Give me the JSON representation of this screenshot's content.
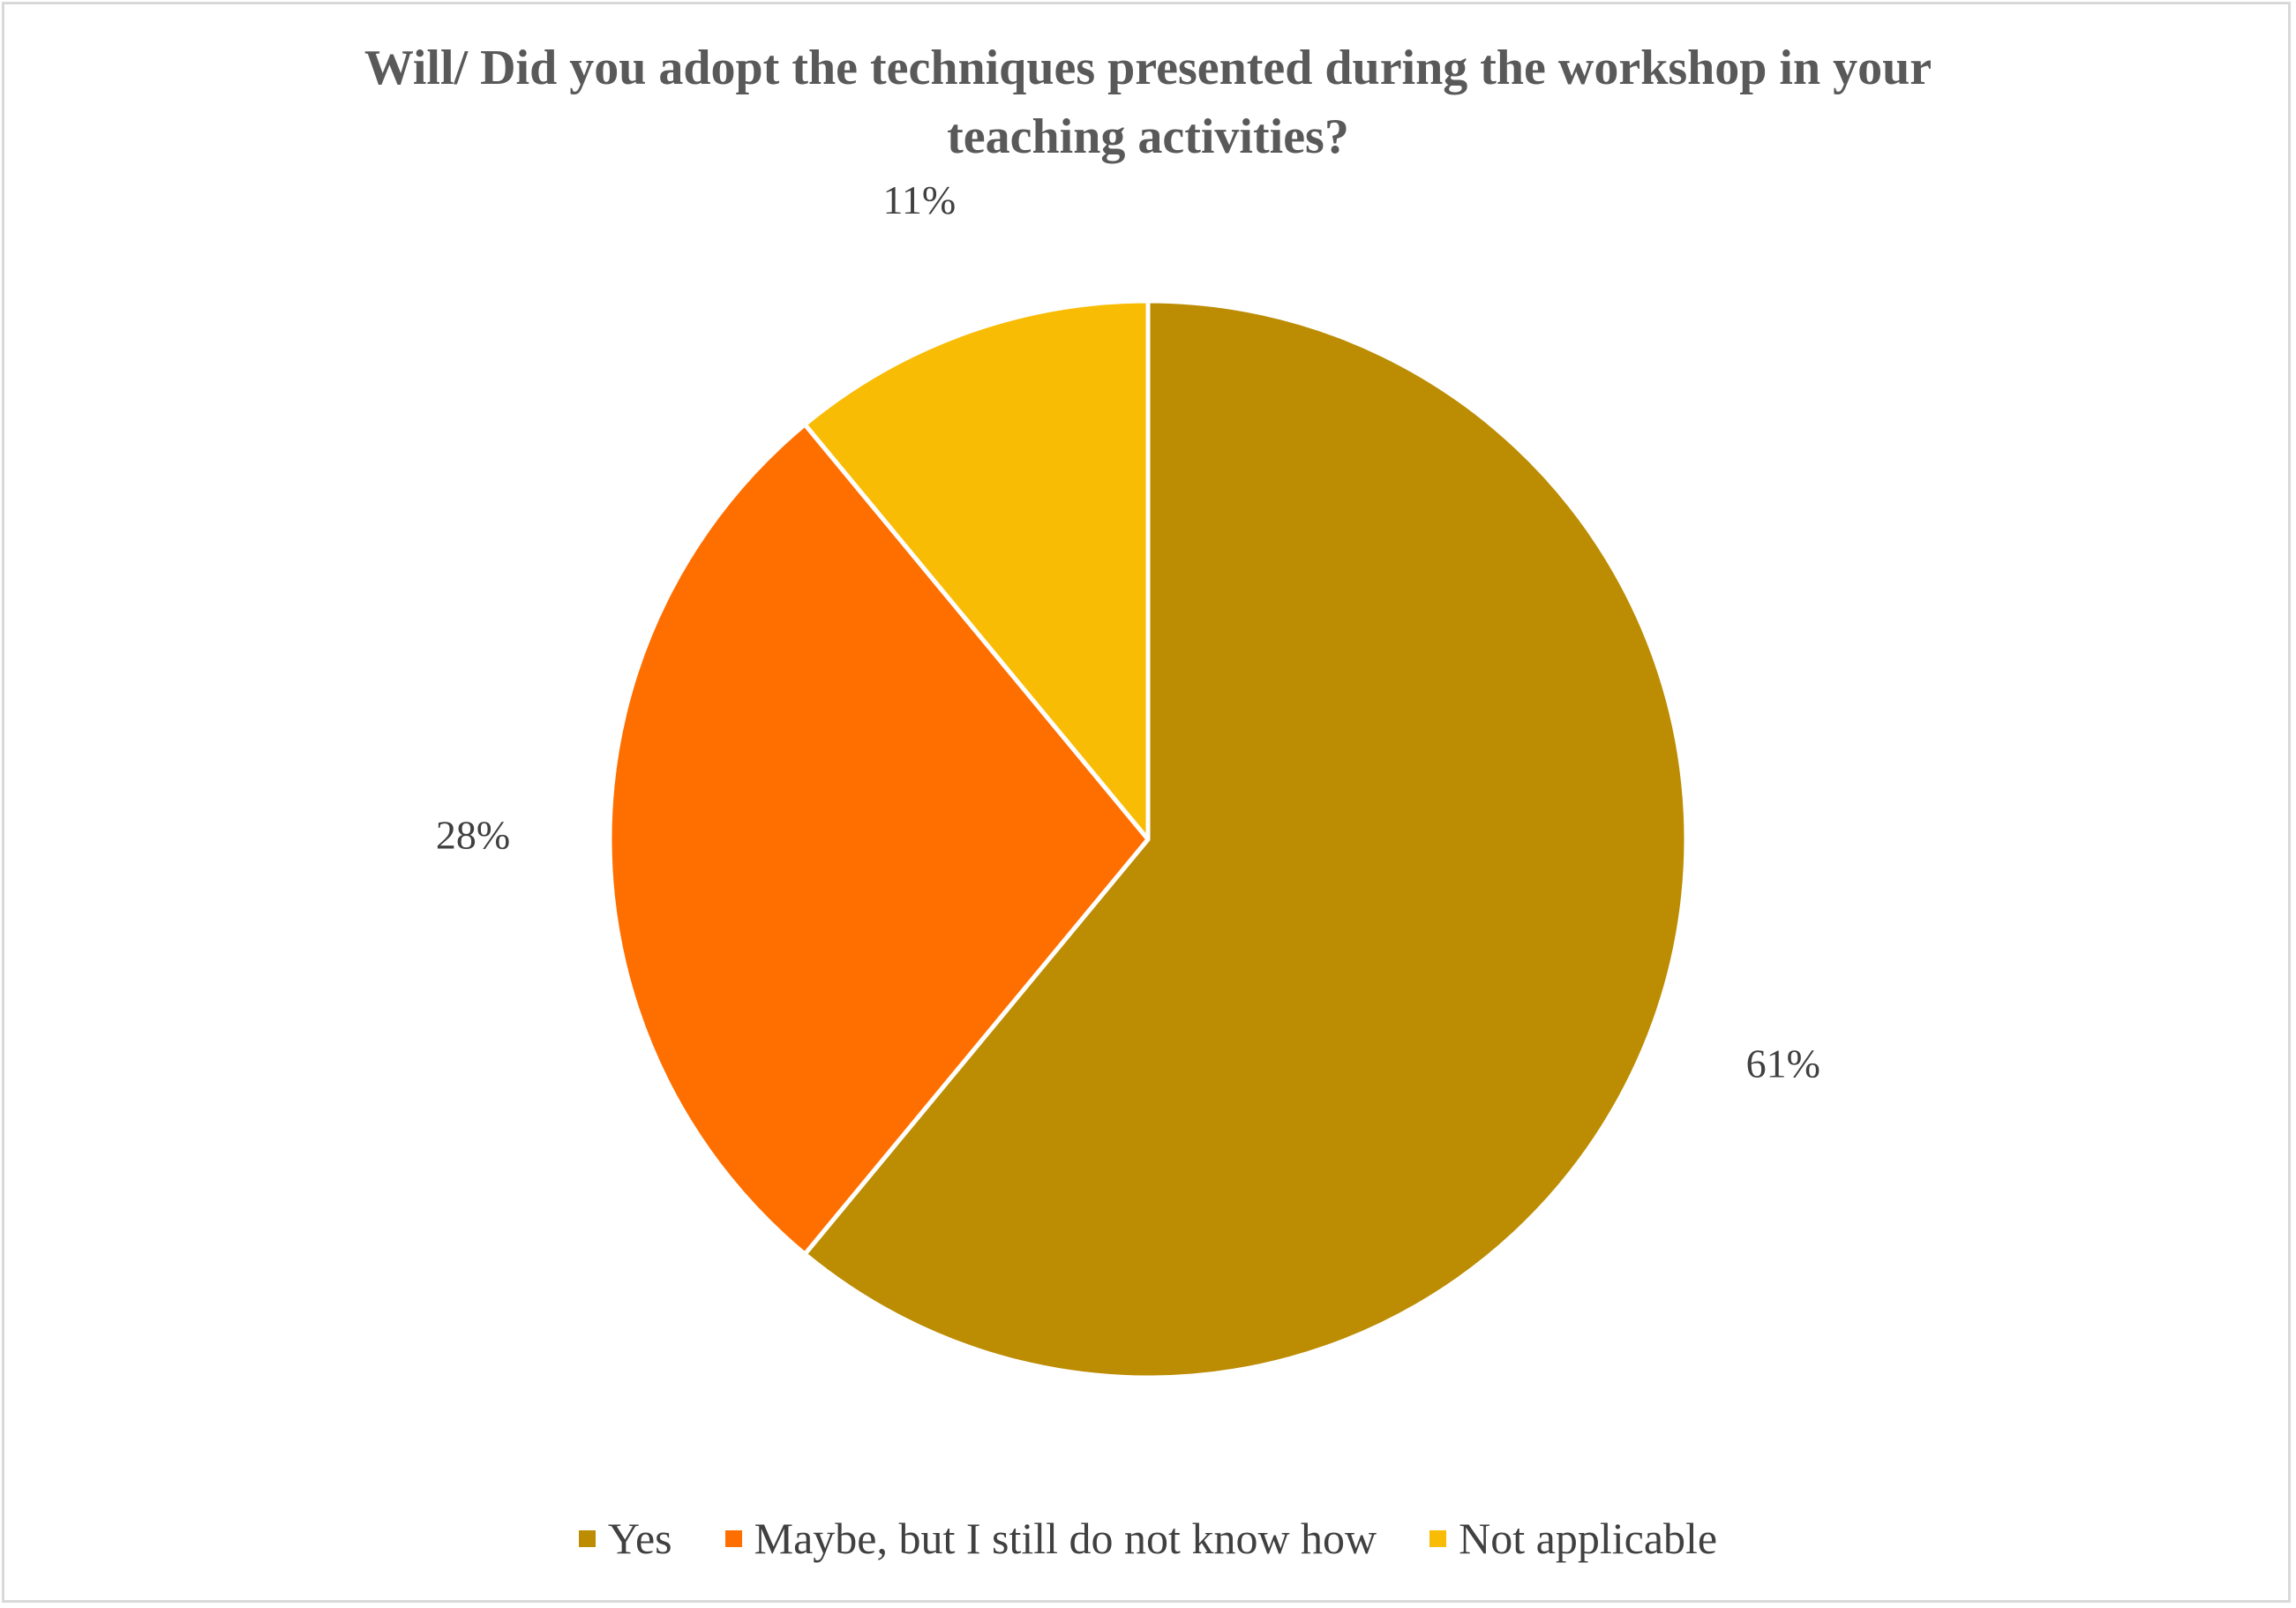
{
  "chart_data": {
    "type": "pie",
    "title": "Will/ Did you adopt the techniques presented during the workshop in your teaching activities?",
    "title_lines": [
      "Will/ Did you adopt the techniques presented during the workshop in your",
      "teaching activities?"
    ],
    "categories": [
      "Yes",
      "Maybe, but I still do not know how",
      "Not applicable"
    ],
    "values": [
      61,
      28,
      11
    ],
    "data_labels": [
      "61%",
      "28%",
      "11%"
    ],
    "colors": [
      "#BC8C03",
      "#FF6F00",
      "#F9BC05"
    ],
    "legend_position": "bottom",
    "start_angle": "12 o'clock, clockwise"
  },
  "colors": {
    "title_text": "#595959",
    "label_text": "#404040",
    "border": "#d9d9d9",
    "slice_separator": "#ffffff"
  }
}
